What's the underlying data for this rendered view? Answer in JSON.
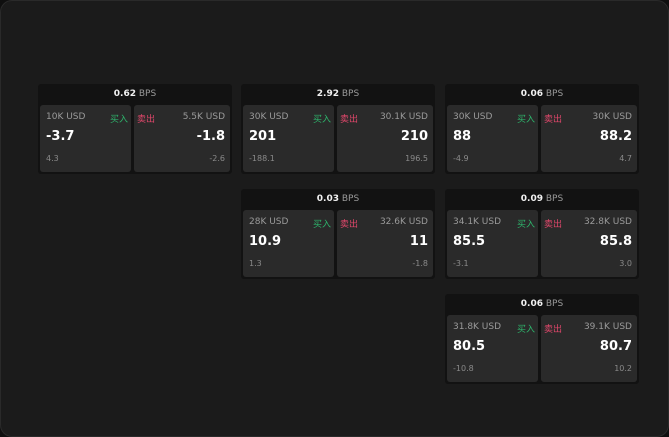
{
  "unit": "BPS",
  "buy_label": "买入",
  "sell_label": "卖出",
  "colors": {
    "buy": "#2eb36b",
    "sell": "#e0476b",
    "background": "#1b1b1b",
    "panel": "#2a2a2a"
  },
  "tiles": [
    {
      "spread": "0.62",
      "buy": {
        "amount": "10K USD",
        "price": "-3.7",
        "change": "4.3"
      },
      "sell": {
        "amount": "5.5K USD",
        "price": "-1.8",
        "change": "-2.6"
      }
    },
    {
      "spread": "2.92",
      "buy": {
        "amount": "30K USD",
        "price": "201",
        "change": "-188.1"
      },
      "sell": {
        "amount": "30.1K USD",
        "price": "210",
        "change": "196.5"
      }
    },
    {
      "spread": "0.06",
      "buy": {
        "amount": "30K USD",
        "price": "88",
        "change": "-4.9"
      },
      "sell": {
        "amount": "30K USD",
        "price": "88.2",
        "change": "4.7"
      }
    },
    {
      "spread": "0.03",
      "buy": {
        "amount": "28K USD",
        "price": "10.9",
        "change": "1.3"
      },
      "sell": {
        "amount": "32.6K USD",
        "price": "11",
        "change": "-1.8"
      }
    },
    {
      "spread": "0.09",
      "buy": {
        "amount": "34.1K USD",
        "price": "85.5",
        "change": "-3.1"
      },
      "sell": {
        "amount": "32.8K USD",
        "price": "85.8",
        "change": "3.0"
      }
    },
    {
      "spread": "0.06",
      "buy": {
        "amount": "31.8K USD",
        "price": "80.5",
        "change": "-10.8"
      },
      "sell": {
        "amount": "39.1K USD",
        "price": "80.7",
        "change": "10.2"
      }
    }
  ]
}
